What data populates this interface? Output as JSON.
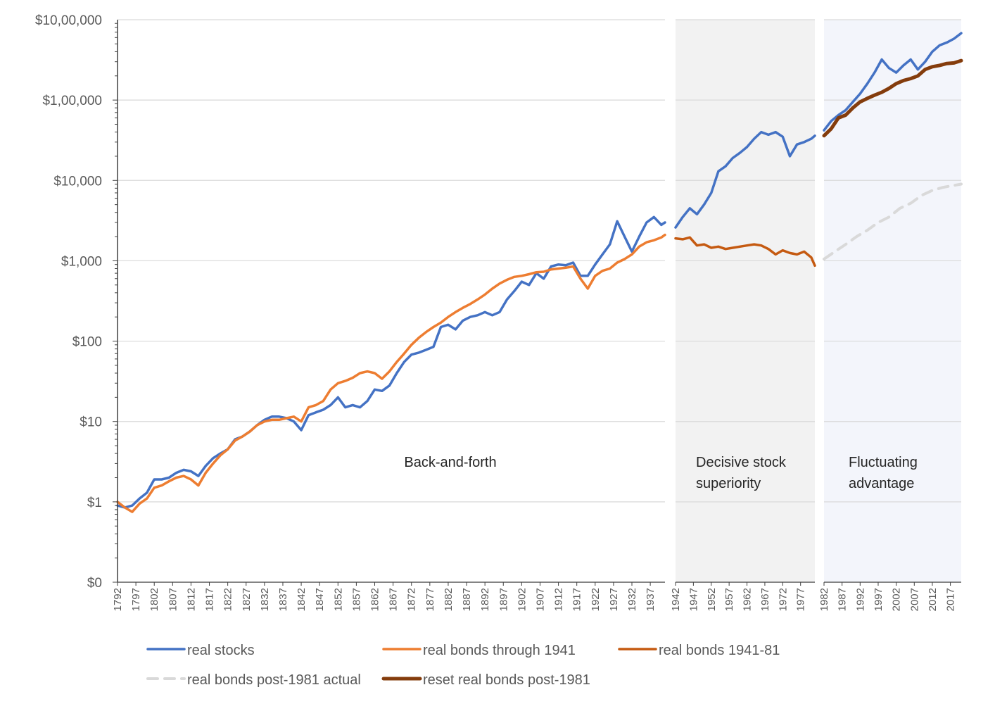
{
  "chart_data": {
    "type": "line",
    "title": "",
    "xlabel": "",
    "ylabel": "",
    "y_scale": "log",
    "ylim": [
      0.1,
      1000000
    ],
    "xlim": [
      1792,
      2020
    ],
    "y_tick_labels": [
      "$10,00,000",
      "$1,00,000",
      "$10,000",
      "$1,000",
      "$100",
      "$10",
      "$1",
      "$0"
    ],
    "y_tick_values": [
      1000000,
      100000,
      10000,
      1000,
      100,
      10,
      1,
      0.1
    ],
    "x_tick_labels": [
      "1792",
      "1797",
      "1802",
      "1807",
      "1812",
      "1817",
      "1822",
      "1827",
      "1832",
      "1837",
      "1842",
      "1847",
      "1852",
      "1857",
      "1862",
      "1867",
      "1872",
      "1877",
      "1882",
      "1887",
      "1892",
      "1897",
      "1902",
      "1907",
      "1912",
      "1917",
      "1922",
      "1927",
      "1932",
      "1937",
      "1942",
      "1947",
      "1952",
      "1957",
      "1962",
      "1967",
      "1972",
      "1977",
      "1982",
      "1987",
      "1992",
      "1997",
      "2002",
      "2007",
      "2012",
      "2017"
    ],
    "panels": [
      {
        "start": 1792,
        "end": 1941,
        "label_lines": [
          "Back-and-forth"
        ],
        "shaded": false,
        "color": "#ffffff"
      },
      {
        "start": 1942,
        "end": 1981,
        "label_lines": [
          "Decisive stock",
          "superiority"
        ],
        "shaded": true,
        "color": "#f2f2f2"
      },
      {
        "start": 1982,
        "end": 2020,
        "label_lines": [
          "Fluctuating",
          "advantage"
        ],
        "shaded": true,
        "color": "#f3f5fb"
      }
    ],
    "series": [
      {
        "name": "real stocks",
        "color": "#4472c4",
        "dash": "solid",
        "x": [
          1792,
          1794,
          1796,
          1798,
          1800,
          1802,
          1804,
          1806,
          1808,
          1810,
          1812,
          1814,
          1816,
          1818,
          1820,
          1822,
          1824,
          1826,
          1828,
          1830,
          1832,
          1834,
          1836,
          1838,
          1840,
          1842,
          1844,
          1846,
          1848,
          1850,
          1852,
          1854,
          1856,
          1858,
          1860,
          1862,
          1864,
          1866,
          1868,
          1870,
          1872,
          1874,
          1876,
          1878,
          1880,
          1882,
          1884,
          1886,
          1888,
          1890,
          1892,
          1894,
          1896,
          1898,
          1900,
          1902,
          1904,
          1906,
          1908,
          1910,
          1912,
          1914,
          1916,
          1918,
          1920,
          1922,
          1924,
          1926,
          1928,
          1930,
          1932,
          1934,
          1936,
          1938,
          1940,
          1941,
          1942,
          1944,
          1946,
          1948,
          1950,
          1952,
          1954,
          1956,
          1958,
          1960,
          1962,
          1964,
          1966,
          1968,
          1970,
          1972,
          1974,
          1976,
          1978,
          1980,
          1981,
          1982,
          1984,
          1986,
          1988,
          1990,
          1992,
          1994,
          1996,
          1998,
          2000,
          2002,
          2004,
          2006,
          2008,
          2010,
          2012,
          2014,
          2016,
          2018,
          2020
        ],
        "values": [
          0.9,
          0.85,
          0.9,
          1.1,
          1.3,
          1.9,
          1.9,
          2.0,
          2.3,
          2.5,
          2.4,
          2.1,
          2.8,
          3.5,
          4.0,
          4.5,
          6.0,
          6.5,
          7.5,
          9.0,
          10.5,
          11.5,
          11.5,
          11.0,
          10.0,
          7.8,
          12.0,
          13.0,
          14.0,
          16.0,
          20.0,
          15.0,
          16.0,
          15.0,
          18.0,
          25.0,
          24.0,
          28.0,
          40.0,
          55.0,
          68.0,
          72.0,
          78.0,
          85.0,
          150.0,
          160.0,
          140.0,
          180.0,
          200.0,
          210.0,
          230.0,
          210.0,
          230.0,
          330.0,
          420.0,
          550.0,
          500.0,
          700.0,
          600.0,
          850.0,
          900.0,
          880.0,
          950.0,
          650.0,
          650.0,
          900.0,
          1200.0,
          1600.0,
          3100.0,
          2000.0,
          1300.0,
          2000.0,
          3000.0,
          3500.0,
          2800.0,
          3000.0,
          2600.0,
          3500.0,
          4500.0,
          3800.0,
          5000.0,
          7000.0,
          13000.0,
          15000.0,
          19000.0,
          22000.0,
          26000.0,
          33000.0,
          40000.0,
          37000.0,
          40000.0,
          35000.0,
          20000.0,
          28000.0,
          30000.0,
          33000.0,
          36000.0,
          42000.0,
          55000.0,
          65000.0,
          75000.0,
          95000.0,
          120000.0,
          160000.0,
          220000.0,
          320000.0,
          250000.0,
          220000.0,
          270000.0,
          320000.0,
          240000.0,
          300000.0,
          400000.0,
          480000.0,
          520000.0,
          580000.0,
          680000.0
        ]
      },
      {
        "name": "real bonds through 1941",
        "color": "#ed7d31",
        "dash": "solid",
        "x": [
          1792,
          1794,
          1796,
          1798,
          1800,
          1802,
          1804,
          1806,
          1808,
          1810,
          1812,
          1814,
          1816,
          1818,
          1820,
          1822,
          1824,
          1826,
          1828,
          1830,
          1832,
          1834,
          1836,
          1838,
          1840,
          1842,
          1844,
          1846,
          1848,
          1850,
          1852,
          1854,
          1856,
          1858,
          1860,
          1862,
          1864,
          1866,
          1868,
          1870,
          1872,
          1874,
          1876,
          1878,
          1880,
          1882,
          1884,
          1886,
          1888,
          1890,
          1892,
          1894,
          1896,
          1898,
          1900,
          1902,
          1904,
          1906,
          1908,
          1910,
          1912,
          1914,
          1916,
          1918,
          1920,
          1922,
          1924,
          1926,
          1928,
          1930,
          1932,
          1934,
          1936,
          1938,
          1940,
          1941
        ],
        "values": [
          1.0,
          0.85,
          0.75,
          0.95,
          1.1,
          1.5,
          1.6,
          1.8,
          2.0,
          2.1,
          1.9,
          1.6,
          2.3,
          3.0,
          3.8,
          4.5,
          5.8,
          6.5,
          7.5,
          9.0,
          10.0,
          10.5,
          10.5,
          11.0,
          11.5,
          10.0,
          15.0,
          16.0,
          18.0,
          25.0,
          30.0,
          32.0,
          35.0,
          40.0,
          42.0,
          40.0,
          34.0,
          42.0,
          55.0,
          70.0,
          90.0,
          110.0,
          130.0,
          150.0,
          170.0,
          200.0,
          230.0,
          260.0,
          290.0,
          330.0,
          380.0,
          450.0,
          520.0,
          580.0,
          630.0,
          650.0,
          680.0,
          720.0,
          730.0,
          780.0,
          800.0,
          820.0,
          850.0,
          600.0,
          450.0,
          650.0,
          750.0,
          800.0,
          950.0,
          1050.0,
          1200.0,
          1500.0,
          1700.0,
          1800.0,
          1950.0,
          2100.0
        ]
      },
      {
        "name": "real bonds 1941-81",
        "color": "#c55a11",
        "dash": "solid",
        "x": [
          1942,
          1944,
          1946,
          1948,
          1950,
          1952,
          1954,
          1956,
          1958,
          1960,
          1962,
          1964,
          1966,
          1968,
          1970,
          1972,
          1974,
          1976,
          1978,
          1980,
          1981
        ],
        "values": [
          1900.0,
          1850.0,
          1950.0,
          1550.0,
          1600.0,
          1450.0,
          1500.0,
          1400.0,
          1450.0,
          1500.0,
          1550.0,
          1600.0,
          1550.0,
          1400.0,
          1200.0,
          1350.0,
          1250.0,
          1200.0,
          1300.0,
          1100.0,
          870.0
        ]
      },
      {
        "name": "real bonds post-1981 actual",
        "color": "#d9d9d9",
        "dash": "dashed",
        "x": [
          1982,
          1985,
          1988,
          1991,
          1994,
          1997,
          2000,
          2003,
          2006,
          2009,
          2012,
          2015,
          2020
        ],
        "values": [
          1050.0,
          1300.0,
          1600.0,
          2000.0,
          2400.0,
          3000.0,
          3500.0,
          4500.0,
          5200.0,
          6500.0,
          7500.0,
          8200.0,
          9000.0
        ]
      },
      {
        "name": "reset real bonds post-1981",
        "color": "#843c0c",
        "dash": "solid",
        "x": [
          1982,
          1984,
          1986,
          1988,
          1990,
          1992,
          1994,
          1996,
          1998,
          2000,
          2002,
          2004,
          2006,
          2008,
          2010,
          2012,
          2014,
          2016,
          2018,
          2020
        ],
        "values": [
          36000.0,
          44000.0,
          60000.0,
          65000.0,
          80000.0,
          95000.0,
          105000.0,
          115000.0,
          125000.0,
          140000.0,
          160000.0,
          175000.0,
          185000.0,
          200000.0,
          240000.0,
          260000.0,
          270000.0,
          285000.0,
          290000.0,
          310000.0
        ]
      }
    ],
    "legend": {
      "position": "bottom",
      "entries": [
        "real stocks",
        "real bonds through 1941",
        "real bonds 1941-81",
        "real bonds post-1981 actual",
        "reset real bonds post-1981"
      ]
    }
  }
}
